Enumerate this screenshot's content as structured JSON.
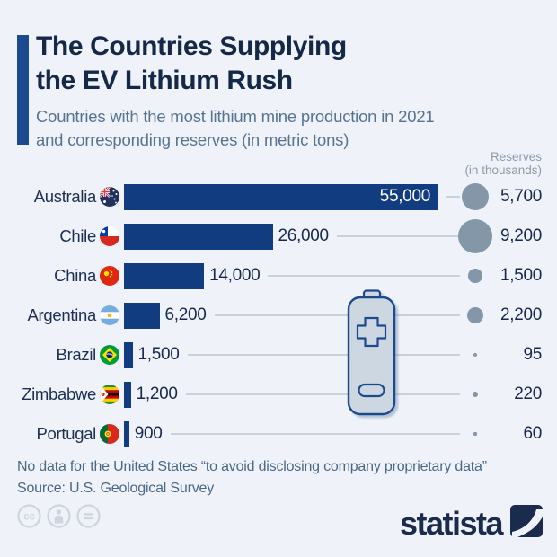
{
  "header": {
    "title_line1": "The Countries Supplying",
    "title_line2": "the EV Lithium Rush",
    "subtitle_line1": "Countries with the most lithium mine production in 2021",
    "subtitle_line2": "and corresponding reserves (in metric tons)"
  },
  "reserves_header": {
    "line1": "Reserves",
    "line2": "(in thousands)"
  },
  "rows": [
    {
      "country": "Australia",
      "production": 55000,
      "production_label": "55,000",
      "reserves": 5700,
      "reserves_label": "5,700"
    },
    {
      "country": "Chile",
      "production": 26000,
      "production_label": "26,000",
      "reserves": 9200,
      "reserves_label": "9,200"
    },
    {
      "country": "China",
      "production": 14000,
      "production_label": "14,000",
      "reserves": 1500,
      "reserves_label": "1,500"
    },
    {
      "country": "Argentina",
      "production": 6200,
      "production_label": "6,200",
      "reserves": 2200,
      "reserves_label": "2,200"
    },
    {
      "country": "Brazil",
      "production": 1500,
      "production_label": "1,500",
      "reserves": 95,
      "reserves_label": "95"
    },
    {
      "country": "Zimbabwe",
      "production": 1200,
      "production_label": "1,200",
      "reserves": 220,
      "reserves_label": "220"
    },
    {
      "country": "Portugal",
      "production": 900,
      "production_label": "900",
      "reserves": 60,
      "reserves_label": "60"
    }
  ],
  "chart_data": {
    "type": "bar",
    "orientation": "horizontal",
    "title": "The Countries Supplying the EV Lithium Rush",
    "subtitle": "Countries with the most lithium mine production in 2021 and corresponding reserves (in metric tons)",
    "categories": [
      "Australia",
      "Chile",
      "China",
      "Argentina",
      "Brazil",
      "Zimbabwe",
      "Portugal"
    ],
    "series": [
      {
        "name": "Lithium mine production 2021 (metric tons)",
        "values": [
          55000,
          26000,
          14000,
          6200,
          1500,
          1200,
          900
        ]
      },
      {
        "name": "Reserves (in thousands of metric tons)",
        "values": [
          5700,
          9200,
          1500,
          2200,
          95,
          220,
          60
        ]
      }
    ],
    "xlim": [
      0,
      55000
    ],
    "grid": false,
    "legend_position": "none",
    "annotations": "Reserves shown as proportional circles to the right of each bar; battery illustration overlaid in chart center"
  },
  "footnote": {
    "line1": "No data for the United States “to avoid disclosing company proprietary data”",
    "line2": "Source: U.S. Geological Survey"
  },
  "footer": {
    "logo_text": "statista",
    "license_icons": [
      "cc-icon",
      "attribution-icon",
      "equals-icon"
    ]
  },
  "colors": {
    "background": "#eff3f9",
    "bar": "#113c80",
    "accent_bar": "#1c4a91",
    "title": "#152848",
    "subtitle": "#587392",
    "reserves_circle": "#8497a9",
    "connector_line": "#c9d2db",
    "value_text": "#16294c",
    "bar_value_inside_text": "#ffffff",
    "reserves_header": "#8d9aa9",
    "footnote": "#4a6787",
    "logo": "#1b2b4d",
    "license_icons": "#cdd6df",
    "battery_fill": "#cdd7e2",
    "battery_stroke": "#1d4a8c"
  }
}
